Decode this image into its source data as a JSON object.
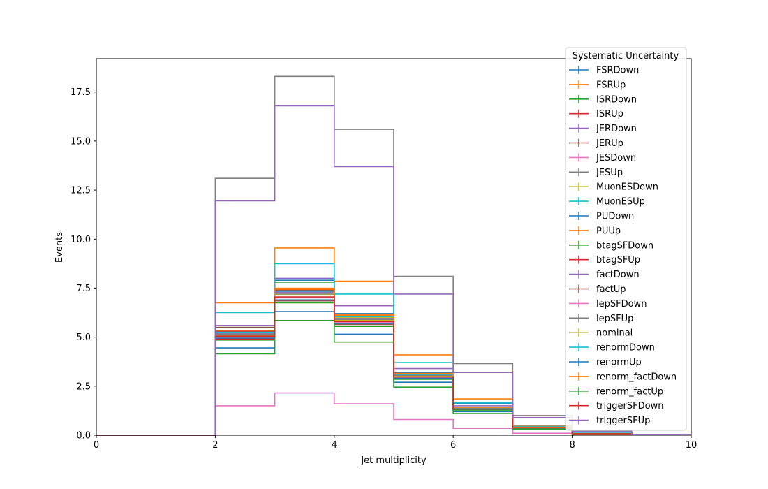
{
  "chart_data": {
    "type": "line",
    "drawstyle": "steps-post",
    "xlabel": "Jet multiplicity",
    "ylabel": "Events",
    "xlim": [
      0,
      10
    ],
    "ylim": [
      0,
      19.2
    ],
    "x_ticks": [
      "0",
      "2",
      "4",
      "6",
      "8",
      "10"
    ],
    "y_ticks": [
      "0.0",
      "2.5",
      "5.0",
      "7.5",
      "10.0",
      "12.5",
      "15.0",
      "17.5"
    ],
    "bin_edges": [
      0,
      1,
      2,
      3,
      4,
      5,
      6,
      7,
      8,
      9,
      10
    ],
    "legend_title": "Systematic Uncertainty",
    "legend_position": "top-right (outside plot edge)",
    "grid": false,
    "series": [
      {
        "name": "FSRDown",
        "color": "#1f77b4",
        "values": [
          0,
          0,
          5.6,
          7.9,
          6.2,
          3.2,
          1.6,
          0.5,
          0.1,
          0.02
        ]
      },
      {
        "name": "FSRUp",
        "color": "#ff7f0e",
        "values": [
          0,
          0,
          6.75,
          9.55,
          7.85,
          4.1,
          1.85,
          0.5,
          0.1,
          0.02
        ]
      },
      {
        "name": "ISRDown",
        "color": "#2ca02c",
        "values": [
          0,
          0,
          5.2,
          7.8,
          6.0,
          3.0,
          1.3,
          0.4,
          0.08,
          0.02
        ]
      },
      {
        "name": "ISRUp",
        "color": "#d62728",
        "values": [
          0,
          0,
          4.9,
          6.9,
          5.8,
          2.9,
          1.3,
          0.4,
          0.08,
          0.02
        ]
      },
      {
        "name": "JERDown",
        "color": "#9467bd",
        "values": [
          0,
          0,
          5.6,
          8.0,
          6.6,
          3.4,
          1.5,
          0.45,
          0.1,
          0.02
        ]
      },
      {
        "name": "JERUp",
        "color": "#8c564b",
        "values": [
          0,
          0,
          5.5,
          7.4,
          6.1,
          3.1,
          1.4,
          0.4,
          0.08,
          0.02
        ]
      },
      {
        "name": "JESDown",
        "color": "#e377c2",
        "values": [
          0,
          0,
          1.5,
          2.15,
          1.6,
          0.8,
          0.35,
          0.1,
          0.03,
          0.01
        ]
      },
      {
        "name": "JESUp",
        "color": "#7f7f7f",
        "values": [
          0,
          0,
          13.1,
          18.3,
          15.6,
          8.1,
          3.65,
          1.0,
          0.2,
          0.04
        ]
      },
      {
        "name": "MuonESDown",
        "color": "#bcbd22",
        "values": [
          0,
          0,
          5.3,
          7.3,
          6.0,
          3.1,
          1.4,
          0.4,
          0.08,
          0.02
        ]
      },
      {
        "name": "MuonESUp",
        "color": "#17becf",
        "values": [
          0,
          0,
          6.25,
          8.75,
          7.2,
          3.7,
          1.65,
          0.45,
          0.1,
          0.02
        ]
      },
      {
        "name": "PUDown",
        "color": "#1f77b4",
        "values": [
          0,
          0,
          4.45,
          6.3,
          5.15,
          2.7,
          1.2,
          0.35,
          0.07,
          0.02
        ]
      },
      {
        "name": "PUUp",
        "color": "#ff7f0e",
        "values": [
          0,
          0,
          5.35,
          7.5,
          6.1,
          3.1,
          1.4,
          0.4,
          0.08,
          0.02
        ]
      },
      {
        "name": "btagSFDown",
        "color": "#2ca02c",
        "values": [
          0,
          0,
          4.15,
          5.85,
          4.75,
          2.45,
          1.1,
          0.3,
          0.06,
          0.01
        ]
      },
      {
        "name": "btagSFUp",
        "color": "#d62728",
        "values": [
          0,
          0,
          5.3,
          7.45,
          6.05,
          3.1,
          1.4,
          0.4,
          0.08,
          0.02
        ]
      },
      {
        "name": "factDown",
        "color": "#9467bd",
        "values": [
          0,
          0,
          5.2,
          7.3,
          5.95,
          3.05,
          1.38,
          0.4,
          0.08,
          0.02
        ]
      },
      {
        "name": "factUp",
        "color": "#8c564b",
        "values": [
          0,
          0,
          4.95,
          6.85,
          5.65,
          2.9,
          1.3,
          0.37,
          0.07,
          0.02
        ]
      },
      {
        "name": "lepSFDown",
        "color": "#e377c2",
        "values": [
          0,
          0,
          5.0,
          7.0,
          5.75,
          2.95,
          1.33,
          0.38,
          0.07,
          0.02
        ]
      },
      {
        "name": "lepSFUp",
        "color": "#7f7f7f",
        "values": [
          0,
          0,
          5.15,
          7.2,
          5.9,
          3.05,
          1.37,
          0.39,
          0.08,
          0.02
        ]
      },
      {
        "name": "nominal",
        "color": "#bcbd22",
        "values": [
          0,
          0,
          5.1,
          7.15,
          5.85,
          3.0,
          1.35,
          0.39,
          0.08,
          0.02
        ]
      },
      {
        "name": "renormDown",
        "color": "#17becf",
        "values": [
          0,
          0,
          5.25,
          7.35,
          6.05,
          3.1,
          1.4,
          0.4,
          0.08,
          0.02
        ]
      },
      {
        "name": "renormUp",
        "color": "#1f77b4",
        "values": [
          0,
          0,
          4.95,
          6.9,
          5.7,
          2.9,
          1.3,
          0.38,
          0.07,
          0.02
        ]
      },
      {
        "name": "renorm_factDown",
        "color": "#ff7f0e",
        "values": [
          0,
          0,
          5.35,
          7.45,
          6.15,
          3.15,
          1.42,
          0.41,
          0.08,
          0.02
        ]
      },
      {
        "name": "renorm_factUp",
        "color": "#2ca02c",
        "values": [
          0,
          0,
          4.85,
          6.75,
          5.55,
          2.85,
          1.28,
          0.37,
          0.07,
          0.02
        ]
      },
      {
        "name": "triggerSFDown",
        "color": "#d62728",
        "values": [
          0,
          0,
          5.05,
          7.05,
          5.8,
          2.97,
          1.34,
          0.38,
          0.07,
          0.02
        ]
      },
      {
        "name": "triggerSFUp",
        "color": "#9467bd",
        "values": [
          0,
          0,
          11.95,
          16.8,
          13.7,
          7.2,
          3.2,
          0.9,
          0.18,
          0.04
        ]
      }
    ]
  }
}
